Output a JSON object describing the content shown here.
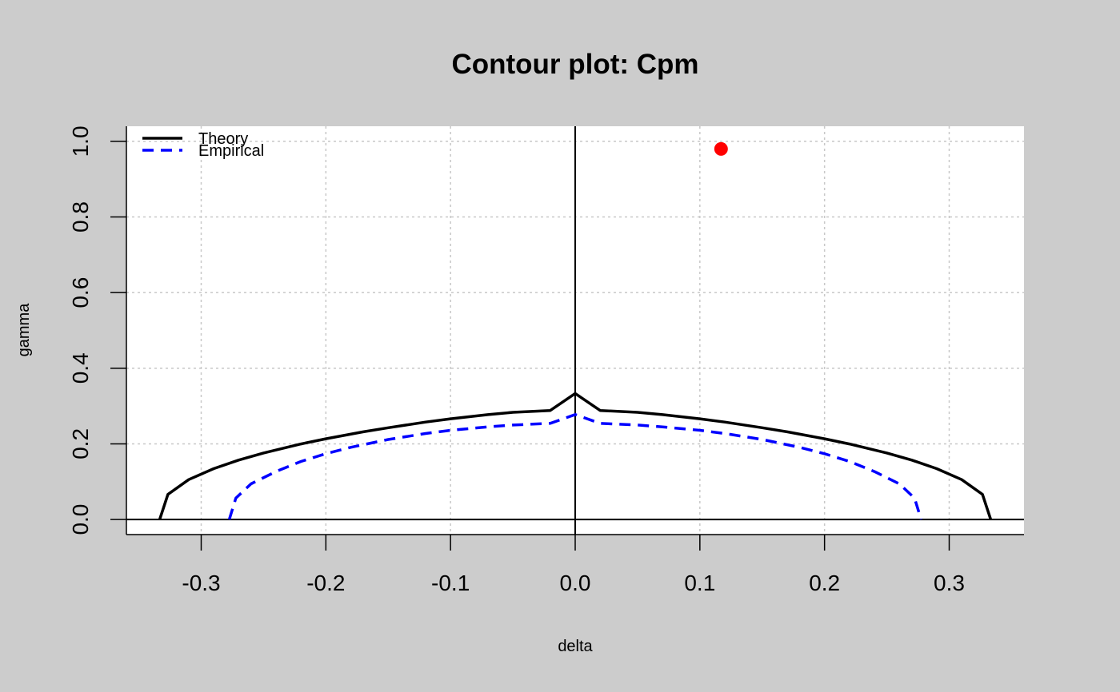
{
  "chart_data": {
    "type": "line",
    "title": "Contour plot: Cpm",
    "xlabel": "delta",
    "ylabel": "gamma",
    "xlim": [
      -0.36,
      0.36
    ],
    "ylim": [
      -0.04,
      1.04
    ],
    "x_ticks": [
      {
        "value": -0.3,
        "label": "-0.3"
      },
      {
        "value": -0.2,
        "label": "-0.2"
      },
      {
        "value": -0.1,
        "label": "-0.1"
      },
      {
        "value": 0.0,
        "label": "0.0"
      },
      {
        "value": 0.1,
        "label": "0.1"
      },
      {
        "value": 0.2,
        "label": "0.2"
      },
      {
        "value": 0.3,
        "label": "0.3"
      }
    ],
    "y_ticks": [
      {
        "value": 0.0,
        "label": "0.0"
      },
      {
        "value": 0.2,
        "label": "0.2"
      },
      {
        "value": 0.4,
        "label": "0.4"
      },
      {
        "value": 0.6,
        "label": "0.6"
      },
      {
        "value": 0.8,
        "label": "0.8"
      },
      {
        "value": 1.0,
        "label": "1.0"
      }
    ],
    "grid": true,
    "reference_lines": {
      "vertical_at_x": 0.0,
      "horizontal_at_y": 0.0
    },
    "legend_position": "top-left",
    "series": [
      {
        "name": "Theory",
        "color": "#000000",
        "style": "solid",
        "x": [
          -0.3333,
          -0.3267,
          -0.31,
          -0.29,
          -0.27,
          -0.25,
          -0.22,
          -0.2,
          -0.17,
          -0.15,
          -0.12,
          -0.1,
          -0.07,
          -0.05,
          -0.02,
          0.0,
          0.02,
          0.05,
          0.07,
          0.1,
          0.12,
          0.15,
          0.17,
          0.2,
          0.22,
          0.25,
          0.27,
          0.29,
          0.31,
          0.3267,
          0.3333
        ],
        "y": [
          0.0,
          0.0663,
          0.1054,
          0.1344,
          0.1569,
          0.1757,
          0.1997,
          0.2134,
          0.2317,
          0.2426,
          0.2576,
          0.2662,
          0.2772,
          0.2833,
          0.2883,
          0.3333,
          0.2883,
          0.2833,
          0.2772,
          0.2662,
          0.2576,
          0.2426,
          0.2317,
          0.2134,
          0.1997,
          0.1757,
          0.1569,
          0.1344,
          0.1054,
          0.0663,
          0.0
        ]
      },
      {
        "name": "Empirical",
        "color": "#0000ff",
        "style": "dashed",
        "x": [
          -0.2775,
          -0.2722,
          -0.26,
          -0.24,
          -0.22,
          -0.2,
          -0.18,
          -0.15,
          -0.12,
          -0.1,
          -0.07,
          -0.05,
          -0.02,
          0.0,
          0.02,
          0.05,
          0.07,
          0.1,
          0.12,
          0.15,
          0.18,
          0.2,
          0.22,
          0.24,
          0.26,
          0.2722,
          0.2775
        ],
        "y": [
          0.0,
          0.0563,
          0.0942,
          0.1267,
          0.1533,
          0.1739,
          0.1909,
          0.2116,
          0.2274,
          0.2358,
          0.245,
          0.2497,
          0.2543,
          0.2775,
          0.2543,
          0.2497,
          0.245,
          0.2358,
          0.2274,
          0.2116,
          0.1909,
          0.1739,
          0.1533,
          0.1267,
          0.0942,
          0.0563,
          0.0
        ]
      }
    ],
    "points": [
      {
        "x": 0.117,
        "y": 0.98,
        "color": "#ff0000"
      }
    ]
  }
}
